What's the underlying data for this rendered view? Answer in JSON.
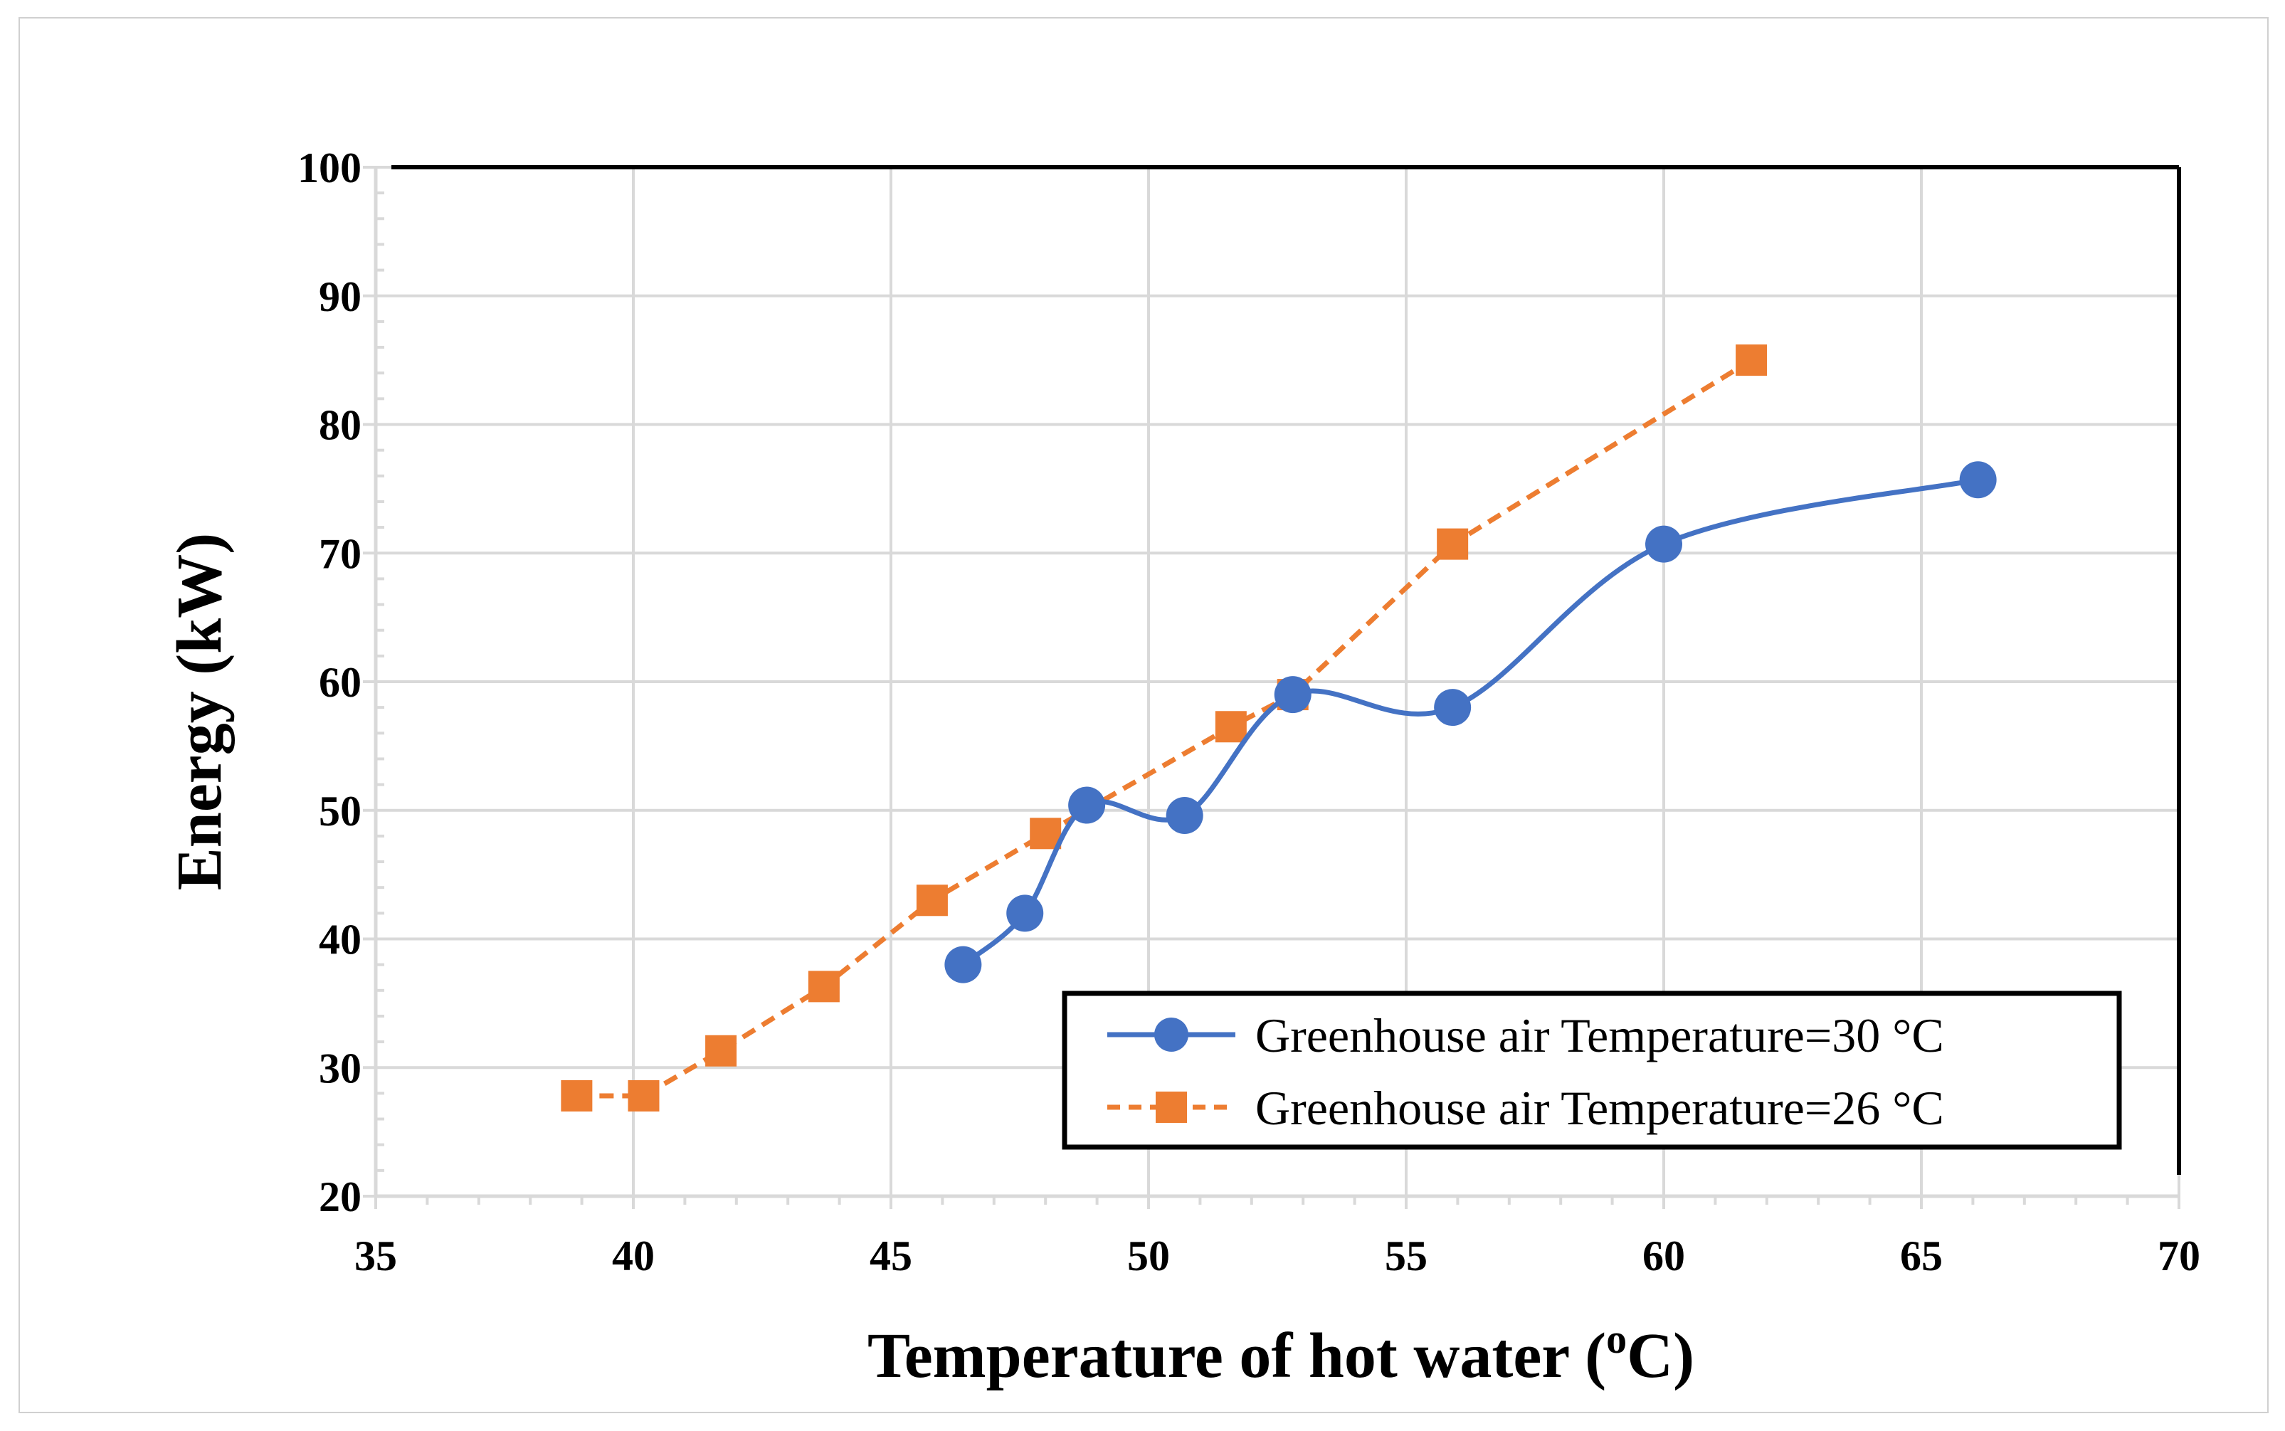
{
  "chart_data": {
    "type": "line",
    "xlabel": "Temperature of hot water (°C)",
    "xlabel_parts": {
      "before": "Temperature of hot water (",
      "superscript": "o",
      "after": "C)"
    },
    "ylabel": "Energy (kW)",
    "xlim": [
      35,
      70
    ],
    "ylim": [
      20,
      100
    ],
    "xticks": [
      "35",
      "40",
      "45",
      "50",
      "55",
      "60",
      "65",
      "70"
    ],
    "yticks": [
      "20",
      "30",
      "40",
      "50",
      "60",
      "70",
      "80",
      "90",
      "100"
    ],
    "grid": true,
    "legend_position": "bottom-right",
    "series": [
      {
        "name": "Greenhouse air Temperature=30 °C",
        "marker": "circle",
        "line_style": "solid",
        "smooth": true,
        "color": "#4472C4",
        "x": [
          46.4,
          47.6,
          48.8,
          50.7,
          52.8,
          55.9,
          60.0,
          66.1
        ],
        "y": [
          38.0,
          42.0,
          50.4,
          49.6,
          59.0,
          58.0,
          70.7,
          75.7
        ]
      },
      {
        "name": "Greenhouse air Temperature=26 °C",
        "marker": "square",
        "line_style": "dashed",
        "smooth": false,
        "color": "#ED7D31",
        "x": [
          38.9,
          40.2,
          41.7,
          43.7,
          45.8,
          48.0,
          51.6,
          52.8,
          55.9,
          61.7
        ],
        "y": [
          27.8,
          27.8,
          31.3,
          36.3,
          43.0,
          48.2,
          56.5,
          59.0,
          70.7,
          85.0
        ]
      }
    ]
  },
  "colors": {
    "grid": "#d9d9d9",
    "axis": "#000000",
    "series_30": "#4472C4",
    "series_26": "#ED7D31"
  }
}
